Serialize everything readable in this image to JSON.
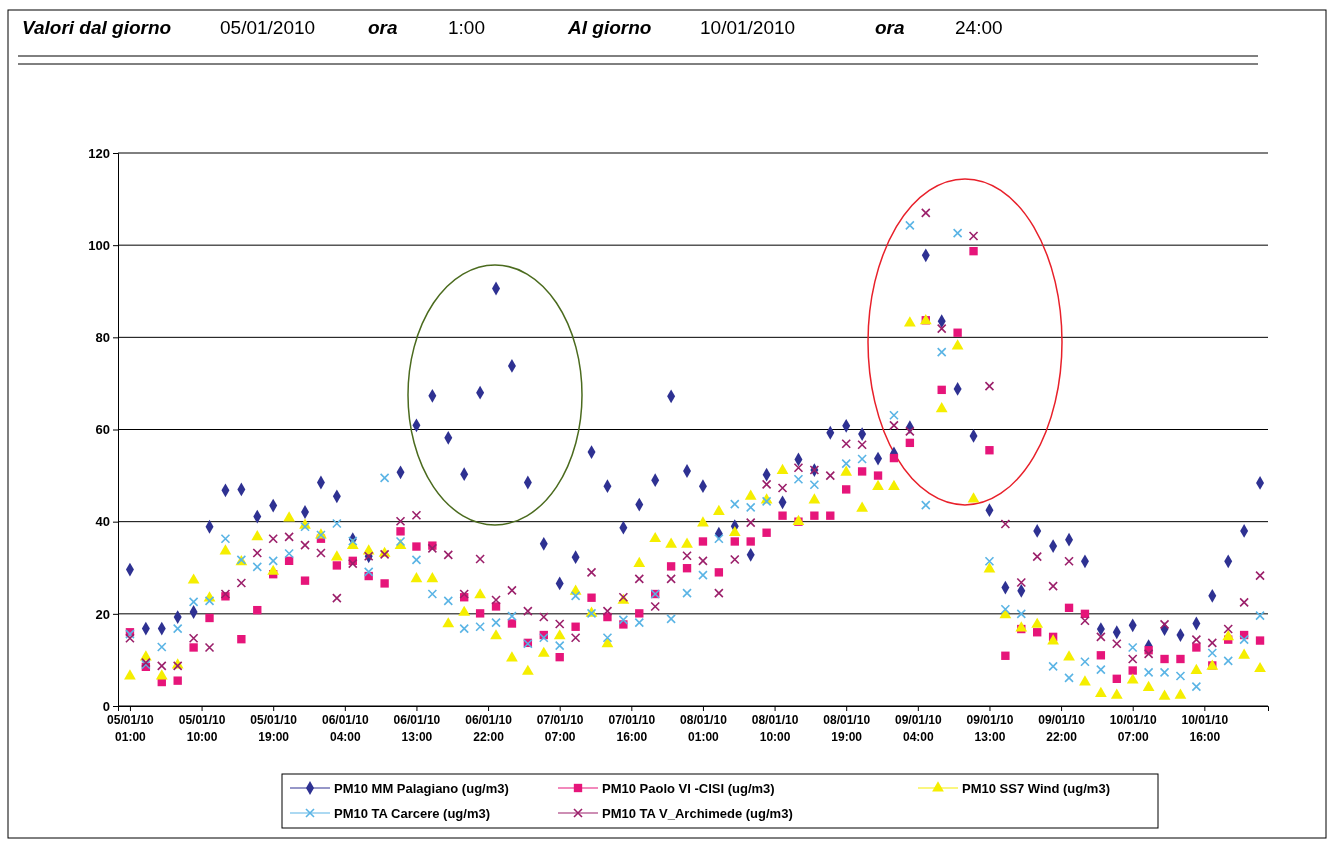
{
  "chart_data": {
    "type": "scatter",
    "annotations": [
      "Valori dal giorno",
      "05/01/2010",
      "ora",
      "1:00",
      "Al giorno",
      "10/01/2010",
      "ora",
      "24:00"
    ],
    "x": [
      "2010-01-05T01:00",
      "2010-01-05T03:00",
      "2010-01-05T05:00",
      "2010-01-05T07:00",
      "2010-01-05T09:00",
      "2010-01-05T11:00",
      "2010-01-05T13:00",
      "2010-01-05T15:00",
      "2010-01-05T17:00",
      "2010-01-05T19:00",
      "2010-01-05T21:00",
      "2010-01-05T23:00",
      "2010-01-06T01:00",
      "2010-01-06T03:00",
      "2010-01-06T05:00",
      "2010-01-06T07:00",
      "2010-01-06T09:00",
      "2010-01-06T11:00",
      "2010-01-06T13:00",
      "2010-01-06T15:00",
      "2010-01-06T17:00",
      "2010-01-06T19:00",
      "2010-01-06T21:00",
      "2010-01-06T23:00",
      "2010-01-07T01:00",
      "2010-01-07T03:00",
      "2010-01-07T05:00",
      "2010-01-07T07:00",
      "2010-01-07T09:00",
      "2010-01-07T11:00",
      "2010-01-07T13:00",
      "2010-01-07T15:00",
      "2010-01-07T17:00",
      "2010-01-07T19:00",
      "2010-01-07T21:00",
      "2010-01-07T23:00",
      "2010-01-08T01:00",
      "2010-01-08T03:00",
      "2010-01-08T05:00",
      "2010-01-08T07:00",
      "2010-01-08T09:00",
      "2010-01-08T11:00",
      "2010-01-08T13:00",
      "2010-01-08T15:00",
      "2010-01-08T17:00",
      "2010-01-08T19:00",
      "2010-01-08T21:00",
      "2010-01-08T23:00",
      "2010-01-09T01:00",
      "2010-01-09T03:00",
      "2010-01-09T05:00",
      "2010-01-09T07:00",
      "2010-01-09T09:00",
      "2010-01-09T11:00",
      "2010-01-09T13:00",
      "2010-01-09T15:00",
      "2010-01-09T17:00",
      "2010-01-09T19:00",
      "2010-01-09T21:00",
      "2010-01-09T23:00",
      "2010-01-10T01:00",
      "2010-01-10T03:00",
      "2010-01-10T05:00",
      "2010-01-10T07:00",
      "2010-01-10T09:00",
      "2010-01-10T11:00",
      "2010-01-10T13:00",
      "2010-01-10T15:00",
      "2010-01-10T17:00",
      "2010-01-10T19:00",
      "2010-01-10T21:00",
      "2010-01-10T23:00"
    ],
    "xlim": [
      "2010-01-04T23:30",
      "2010-01-11T00:00"
    ],
    "xticks": [
      {
        "value": "2010-01-05T01:00",
        "label": "05/01/10 01:00"
      },
      {
        "value": "2010-01-05T10:00",
        "label": "05/01/10 10:00"
      },
      {
        "value": "2010-01-05T19:00",
        "label": "05/01/10 19:00"
      },
      {
        "value": "2010-01-06T04:00",
        "label": "06/01/10 04:00"
      },
      {
        "value": "2010-01-06T13:00",
        "label": "06/01/10 13:00"
      },
      {
        "value": "2010-01-06T22:00",
        "label": "06/01/10 22:00"
      },
      {
        "value": "2010-01-07T07:00",
        "label": "07/01/10 07:00"
      },
      {
        "value": "2010-01-07T16:00",
        "label": "07/01/10 16:00"
      },
      {
        "value": "2010-01-08T01:00",
        "label": "08/01/10 01:00"
      },
      {
        "value": "2010-01-08T10:00",
        "label": "08/01/10 10:00"
      },
      {
        "value": "2010-01-08T19:00",
        "label": "08/01/10 19:00"
      },
      {
        "value": "2010-01-09T04:00",
        "label": "09/01/10 04:00"
      },
      {
        "value": "2010-01-09T13:00",
        "label": "09/01/10 13:00"
      },
      {
        "value": "2010-01-09T22:00",
        "label": "09/01/10 22:00"
      },
      {
        "value": "2010-01-10T07:00",
        "label": "10/01/10 07:00"
      },
      {
        "value": "2010-01-10T16:00",
        "label": "10/01/10 16:00"
      }
    ],
    "ylim": [
      0,
      120
    ],
    "yticks": [
      0,
      20,
      40,
      60,
      80,
      100,
      120
    ],
    "grid": "y",
    "legend": "bottom",
    "series": [
      {
        "name": "PM10 MM Palagiano (ug/m3)",
        "color": "#2e3192",
        "marker": "diamond",
        "values": [
          29.6,
          16.8,
          16.8,
          19.3,
          20.4,
          38.9,
          46.8,
          47.0,
          41.1,
          43.5,
          null,
          42.1,
          48.5,
          45.5,
          36.2,
          32.5,
          null,
          50.7,
          60.9,
          67.3,
          58.2,
          50.3,
          68.0,
          90.6,
          73.8,
          48.5,
          35.2,
          26.6,
          32.3,
          55.1,
          47.7,
          38.7,
          43.7,
          49.0,
          67.2,
          51.0,
          47.7,
          37.4,
          39.0,
          32.8,
          50.2,
          44.2,
          53.5,
          51.2,
          59.3,
          60.8,
          59.0,
          53.7,
          54.8,
          60.5,
          97.8,
          83.5,
          68.8,
          58.6,
          42.5,
          25.7,
          25.0,
          38.0,
          34.7,
          36.1,
          31.4,
          16.7,
          16.0,
          17.5,
          13.0,
          16.7,
          15.4,
          17.9,
          23.9,
          31.4,
          38.0,
          48.4
        ]
      },
      {
        "name": "PM10 Paolo VI -CISI (ug/m3)",
        "color": "#e6157a",
        "marker": "square",
        "values": [
          16.0,
          8.5,
          5.2,
          5.5,
          12.7,
          19.1,
          23.8,
          14.5,
          20.8,
          28.6,
          31.5,
          27.2,
          36.3,
          30.5,
          31.5,
          28.2,
          26.6,
          37.9,
          34.6,
          34.8,
          null,
          23.6,
          20.1,
          21.6,
          17.9,
          13.7,
          15.4,
          10.6,
          17.2,
          23.5,
          19.3,
          17.7,
          20.1,
          24.3,
          30.3,
          29.9,
          35.7,
          29.0,
          35.7,
          35.7,
          37.6,
          41.3,
          40.0,
          41.3,
          41.3,
          47.0,
          50.9,
          50.0,
          53.8,
          57.1,
          83.7,
          68.6,
          81.0,
          98.7,
          55.5,
          10.9,
          16.7,
          16.0,
          15.0,
          21.3,
          20.0,
          11.0,
          5.9,
          7.7,
          12.1,
          10.2,
          10.2,
          12.7,
          8.8,
          14.4,
          15.4,
          14.2
        ]
      },
      {
        "name": "PM10 SS7 Wind (ug/m3)",
        "color": "#f5ee00",
        "marker": "triangle",
        "values": [
          6.5,
          10.6,
          6.5,
          8.9,
          27.3,
          23.4,
          33.6,
          31.3,
          36.7,
          29.2,
          40.8,
          39.2,
          37.1,
          32.3,
          34.8,
          33.6,
          33.1,
          34.8,
          27.6,
          27.6,
          17.8,
          20.3,
          24.1,
          15.2,
          10.4,
          7.5,
          11.4,
          15.2,
          24.9,
          20.1,
          13.5,
          22.9,
          30.9,
          36.3,
          35.1,
          35.1,
          39.7,
          42.2,
          37.6,
          45.5,
          44.7,
          51.1,
          40.0,
          44.7,
          null,
          50.7,
          42.9,
          47.6,
          47.6,
          83.1,
          83.6,
          64.5,
          78.1,
          44.9,
          29.7,
          19.8,
          16.9,
          17.7,
          14.1,
          10.6,
          5.2,
          2.7,
          2.3,
          5.6,
          4.0,
          2.1,
          2.3,
          7.7,
          8.6,
          15.0,
          11.0,
          8.1
        ]
      },
      {
        "name": "PM10 TA Carcere (ug/m3)",
        "color": "#5ab4e5",
        "marker": "cross",
        "values": [
          15.6,
          9.0,
          12.8,
          16.8,
          22.6,
          22.8,
          36.3,
          31.7,
          30.2,
          31.5,
          33.1,
          38.9,
          37.1,
          39.6,
          35.8,
          29.1,
          49.5,
          35.7,
          31.7,
          24.3,
          22.8,
          16.8,
          17.2,
          18.1,
          19.5,
          13.5,
          14.8,
          13.1,
          23.9,
          20.1,
          14.8,
          18.7,
          18.1,
          24.3,
          18.9,
          24.5,
          28.4,
          36.3,
          43.8,
          43.1,
          44.4,
          null,
          49.2,
          48.0,
          null,
          52.6,
          53.6,
          null,
          63.1,
          104.3,
          43.6,
          76.8,
          102.6,
          null,
          31.4,
          21.0,
          20.0,
          null,
          8.6,
          6.1,
          9.6,
          7.9,
          null,
          12.7,
          7.3,
          7.3,
          6.5,
          4.2,
          11.5,
          9.8,
          14.4,
          19.6
        ]
      },
      {
        "name": "PM10 TA V_Archimede (ug/m3)",
        "color": "#9b1f6a",
        "marker": "cross",
        "values": [
          14.7,
          9.4,
          8.7,
          8.7,
          14.7,
          12.7,
          24.3,
          26.7,
          33.2,
          36.3,
          36.7,
          34.9,
          33.2,
          23.4,
          30.9,
          32.5,
          32.9,
          40.1,
          41.4,
          34.2,
          32.8,
          24.3,
          31.9,
          23.0,
          25.1,
          20.6,
          19.3,
          17.8,
          14.8,
          29.0,
          20.6,
          23.6,
          27.6,
          21.6,
          27.6,
          32.6,
          31.5,
          24.5,
          31.8,
          39.8,
          48.1,
          47.3,
          51.7,
          51.2,
          50.0,
          56.9,
          56.7,
          null,
          60.9,
          59.6,
          107.0,
          81.9,
          null,
          102.0,
          69.4,
          39.5,
          26.8,
          32.4,
          26.0,
          31.4,
          18.5,
          15.0,
          13.5,
          10.2,
          11.3,
          17.7,
          null,
          14.4,
          13.7,
          16.7,
          22.5,
          28.3
        ]
      }
    ]
  }
}
